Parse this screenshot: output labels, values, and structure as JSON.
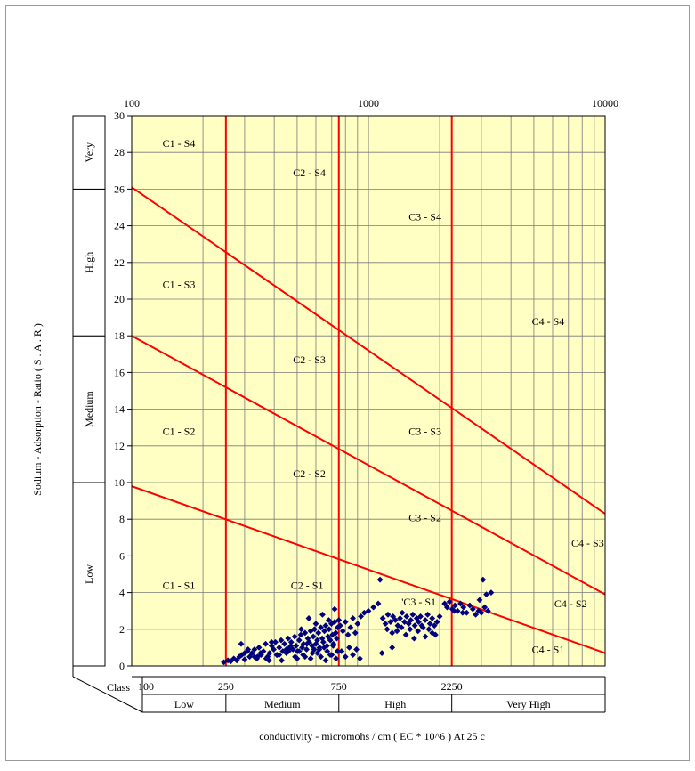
{
  "chart_data": {
    "type": "scatter",
    "title": "",
    "xlabel": "conductivity - micromohs / cm  ( EC * 10^6 ) At  25 c",
    "ylabel": "Sodium - Adsorption - Ratio  ( S . A . R )",
    "x_scale": "log",
    "xlim": [
      100,
      10000
    ],
    "ylim": [
      0,
      30
    ],
    "x_top_ticks": [
      "100",
      "1000",
      "10000"
    ],
    "x_top_tick_values": [
      100,
      1000,
      10000
    ],
    "y_ticks": [
      0,
      2,
      4,
      6,
      8,
      10,
      12,
      14,
      16,
      18,
      20,
      22,
      24,
      26,
      28,
      30
    ],
    "grid": true,
    "plot_background": "#ffffc4",
    "marker_color": "#000080",
    "line_color": "#ff0000",
    "conductivity_boundaries": [
      250,
      750,
      2250
    ],
    "bottom_class_label": "Class",
    "bottom_tick_labels": [
      {
        "label": "100",
        "x": 100
      },
      {
        "label": "250",
        "x": 250
      },
      {
        "label": "750",
        "x": 750
      },
      {
        "label": "2250",
        "x": 2250
      }
    ],
    "salinity_classes": [
      {
        "label": "Low",
        "from": 100,
        "to": 250
      },
      {
        "label": "Medium",
        "from": 250,
        "to": 750
      },
      {
        "label": "High",
        "from": 750,
        "to": 2250
      },
      {
        "label": "Very High",
        "from": 2250,
        "to": 10000
      }
    ],
    "sodium_classes": [
      {
        "label": "Low",
        "from": 0,
        "to": 10
      },
      {
        "label": "Medium",
        "from": 10,
        "to": 18
      },
      {
        "label": "High",
        "from": 18,
        "to": 26
      },
      {
        "label": "Very",
        "from": 26,
        "to": 30
      }
    ],
    "boundary_lines": [
      {
        "x": [
          100,
          10000
        ],
        "y": [
          9.8,
          0.7
        ]
      },
      {
        "x": [
          100,
          10000
        ],
        "y": [
          18,
          3.9
        ]
      },
      {
        "x": [
          100,
          10000
        ],
        "y": [
          26.1,
          8.3
        ]
      }
    ],
    "region_labels": [
      {
        "label": "C1 - S4",
        "x": 135,
        "y": 28.3
      },
      {
        "label": "C2 - S4",
        "x": 480,
        "y": 26.7
      },
      {
        "label": "C3 - S4",
        "x": 1480,
        "y": 24.3
      },
      {
        "label": "C1 - S3",
        "x": 135,
        "y": 20.6
      },
      {
        "label": "C2 - S3",
        "x": 480,
        "y": 16.5
      },
      {
        "label": "C4 - S4",
        "x": 4900,
        "y": 18.6
      },
      {
        "label": "C1 - S2",
        "x": 135,
        "y": 12.6
      },
      {
        "label": "C2 - S2",
        "x": 480,
        "y": 10.3
      },
      {
        "label": "C3 - S3",
        "x": 1480,
        "y": 12.6
      },
      {
        "label": "C3 - S2",
        "x": 1480,
        "y": 7.9
      },
      {
        "label": "C4 - S3",
        "x": 7200,
        "y": 6.5
      },
      {
        "label": "C1 - S1",
        "x": 135,
        "y": 4.2
      },
      {
        "label": "C2 - S1",
        "x": 470,
        "y": 4.2
      },
      {
        "label": "'C3 - S1",
        "x": 1380,
        "y": 3.3
      },
      {
        "label": "C4 - S2",
        "x": 6100,
        "y": 3.2
      },
      {
        "label": "C4 - S1",
        "x": 4900,
        "y": 0.7
      }
    ],
    "series": [
      {
        "x": [
          245,
          255,
          262,
          270,
          278,
          285,
          292,
          300,
          308,
          315,
          322,
          330,
          338,
          345,
          352,
          360,
          368,
          375,
          382,
          390,
          398,
          405,
          412,
          420,
          428,
          435,
          442,
          450,
          458,
          465,
          472,
          480,
          488,
          495,
          502,
          510,
          518,
          525,
          532,
          540,
          548,
          555,
          562,
          570,
          578,
          585,
          592,
          600,
          608,
          615,
          622,
          630,
          638,
          645,
          652,
          660,
          668,
          675,
          682,
          690,
          698,
          705,
          712,
          720,
          728,
          735,
          742,
          750,
          290,
          310,
          330,
          350,
          370,
          390,
          410,
          430,
          450,
          470,
          490,
          510,
          530,
          550,
          570,
          590,
          610,
          630,
          650,
          670,
          690,
          710,
          730,
          300,
          340,
          380,
          420,
          460,
          500,
          540,
          580,
          620,
          660,
          700,
          740,
          520,
          560,
          600,
          640,
          680,
          720,
          760,
          780,
          800,
          820,
          840,
          860,
          880,
          900,
          930,
          960,
          1000,
          1050,
          1100,
          770,
          800,
          830,
          860,
          890,
          920,
          1120,
          1150,
          1180,
          1210,
          1240,
          1270,
          1300,
          1330,
          1360,
          1390,
          1420,
          1450,
          1480,
          1510,
          1540,
          1570,
          1600,
          1630,
          1660,
          1700,
          1740,
          1780,
          1820,
          1860,
          1900,
          1950,
          2000,
          1200,
          1260,
          1320,
          1380,
          1440,
          1500,
          1560,
          1620,
          1680,
          1740,
          1800,
          1860,
          1920,
          1140,
          1260,
          2100,
          2150,
          2200,
          2260,
          2320,
          2380,
          2450,
          2520,
          2600,
          2680,
          2760,
          2840,
          2920,
          3000,
          3100,
          3200,
          3050,
          2950,
          3150,
          3300,
          2300,
          2500
        ],
        "y": [
          0.2,
          0.3,
          0.25,
          0.4,
          0.3,
          0.5,
          0.6,
          0.35,
          0.8,
          0.5,
          0.7,
          0.9,
          0.4,
          1.0,
          0.6,
          0.8,
          1.2,
          0.5,
          0.7,
          1.1,
          0.9,
          1.3,
          0.6,
          1.0,
          1.4,
          0.8,
          1.2,
          0.7,
          1.5,
          1.0,
          1.3,
          0.9,
          1.6,
          1.1,
          0.8,
          1.4,
          1.7,
          1.0,
          1.2,
          1.8,
          0.9,
          1.5,
          1.3,
          1.9,
          1.1,
          1.6,
          2.0,
          1.2,
          1.4,
          1.8,
          1.0,
          2.1,
          1.5,
          1.3,
          1.9,
          2.2,
          1.1,
          1.6,
          2.0,
          1.4,
          2.3,
          1.7,
          1.2,
          2.4,
          1.8,
          1.5,
          2.1,
          2.5,
          1.2,
          0.9,
          0.5,
          0.7,
          0.4,
          1.3,
          0.6,
          0.3,
          0.9,
          1.1,
          0.5,
          0.8,
          0.6,
          1.2,
          0.4,
          0.9,
          0.7,
          0.5,
          1.0,
          0.8,
          0.6,
          1.1,
          0.4,
          0.7,
          0.5,
          0.3,
          0.6,
          0.8,
          0.4,
          0.5,
          0.7,
          0.9,
          0.3,
          0.6,
          0.8,
          2.0,
          2.6,
          2.3,
          2.8,
          2.5,
          3.1,
          2.2,
          1.9,
          2.4,
          1.7,
          2.1,
          2.6,
          1.8,
          2.3,
          2.7,
          2.9,
          3.0,
          3.2,
          3.4,
          0.8,
          0.5,
          1.0,
          0.6,
          0.9,
          0.4,
          4.7,
          2.6,
          2.3,
          2.8,
          2.4,
          2.7,
          2.5,
          2.2,
          2.6,
          2.9,
          2.4,
          2.7,
          2.3,
          2.5,
          2.8,
          2.2,
          2.6,
          2.4,
          2.7,
          2.1,
          2.5,
          2.8,
          2.3,
          2.6,
          2.2,
          2.4,
          2.7,
          2.0,
          1.8,
          1.9,
          2.1,
          1.7,
          2.0,
          1.5,
          1.9,
          2.2,
          1.6,
          2.0,
          1.8,
          1.7,
          0.7,
          1.0,
          3.4,
          3.2,
          3.5,
          3.1,
          3.3,
          3.0,
          3.4,
          3.2,
          2.9,
          3.3,
          3.1,
          2.8,
          3.0,
          2.9,
          3.2,
          3.0,
          4.7,
          3.6,
          3.9,
          4.0,
          3.0,
          2.9
        ]
      }
    ]
  }
}
